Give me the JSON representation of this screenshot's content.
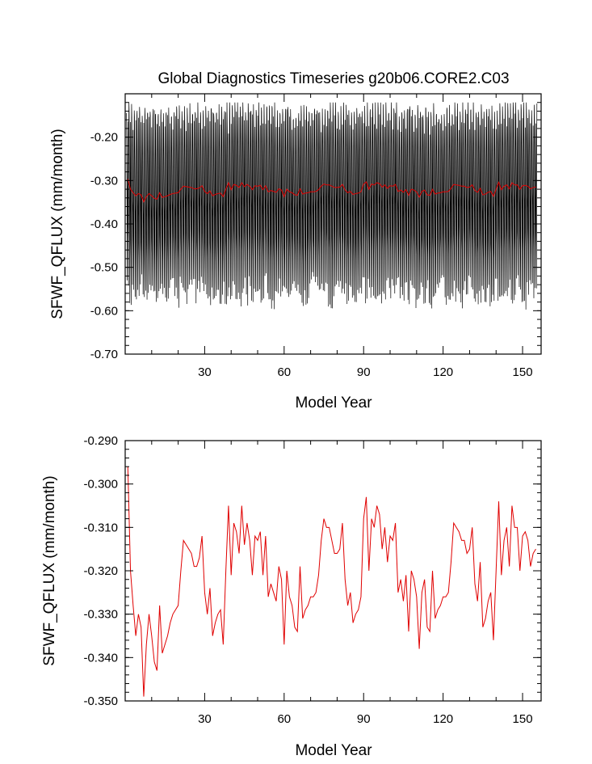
{
  "chart_data": [
    {
      "type": "line",
      "title": "Global Diagnostics Timeseries g20b06.CORE2.C03",
      "xlabel": "Model Year",
      "ylabel": "SFWF_QFLUX (mm/month)",
      "xlim": [
        0,
        157
      ],
      "ylim": [
        -0.7,
        -0.1
      ],
      "xticks": [
        30,
        60,
        90,
        120,
        150
      ],
      "xtick_labels": [
        "30",
        "60",
        "90",
        "120",
        "150"
      ],
      "yticks": [
        -0.2,
        -0.3,
        -0.4,
        -0.5,
        -0.6,
        -0.7
      ],
      "ytick_labels": [
        "-0.20",
        "-0.30",
        "-0.40",
        "-0.50",
        "-0.60",
        "-0.70"
      ],
      "grid": false,
      "series": [
        {
          "role": "monthly",
          "color": "#000000",
          "seasonal_cycle_per_year": true,
          "typical_max": -0.15,
          "typical_min": -0.55,
          "extreme_max": -0.12,
          "extreme_min": -0.6
        },
        {
          "role": "annual_mean",
          "color": "#e00000",
          "same_as": "chart_data.1.series.0"
        }
      ]
    },
    {
      "type": "line",
      "title": "",
      "xlabel": "Model Year",
      "ylabel": "SFWF_QFLUX (mm/month)",
      "xlim": [
        0,
        157
      ],
      "ylim": [
        -0.35,
        -0.29
      ],
      "xticks": [
        30,
        60,
        90,
        120,
        150
      ],
      "xtick_labels": [
        "30",
        "60",
        "90",
        "120",
        "150"
      ],
      "yticks": [
        -0.29,
        -0.3,
        -0.31,
        -0.32,
        -0.33,
        -0.34,
        -0.35
      ],
      "ytick_labels": [
        "-0.290",
        "-0.300",
        "-0.310",
        "-0.320",
        "-0.330",
        "-0.340",
        "-0.350"
      ],
      "grid": false,
      "series": [
        {
          "color": "#e00000",
          "x_start": 1,
          "x_step": 1,
          "values": [
            -0.296,
            -0.32,
            -0.328,
            -0.335,
            -0.33,
            -0.333,
            -0.349,
            -0.337,
            -0.33,
            -0.335,
            -0.341,
            -0.343,
            -0.328,
            -0.339,
            -0.337,
            -0.335,
            -0.332,
            -0.33,
            -0.329,
            -0.328,
            -0.32,
            -0.313,
            -0.314,
            -0.315,
            -0.316,
            -0.319,
            -0.319,
            -0.317,
            -0.312,
            -0.325,
            -0.33,
            -0.324,
            -0.335,
            -0.332,
            -0.33,
            -0.329,
            -0.337,
            -0.32,
            -0.305,
            -0.321,
            -0.309,
            -0.311,
            -0.316,
            -0.305,
            -0.314,
            -0.309,
            -0.313,
            -0.321,
            -0.312,
            -0.313,
            -0.311,
            -0.321,
            -0.312,
            -0.326,
            -0.323,
            -0.325,
            -0.327,
            -0.319,
            -0.322,
            -0.337,
            -0.32,
            -0.326,
            -0.328,
            -0.333,
            -0.334,
            -0.319,
            -0.331,
            -0.329,
            -0.328,
            -0.326,
            -0.326,
            -0.325,
            -0.321,
            -0.313,
            -0.308,
            -0.31,
            -0.31,
            -0.313,
            -0.316,
            -0.316,
            -0.315,
            -0.309,
            -0.322,
            -0.328,
            -0.325,
            -0.332,
            -0.33,
            -0.329,
            -0.326,
            -0.308,
            -0.303,
            -0.32,
            -0.308,
            -0.31,
            -0.305,
            -0.307,
            -0.315,
            -0.31,
            -0.318,
            -0.312,
            -0.313,
            -0.309,
            -0.325,
            -0.322,
            -0.327,
            -0.321,
            -0.334,
            -0.32,
            -0.322,
            -0.326,
            -0.338,
            -0.325,
            -0.322,
            -0.333,
            -0.334,
            -0.32,
            -0.331,
            -0.329,
            -0.328,
            -0.326,
            -0.326,
            -0.325,
            -0.318,
            -0.309,
            -0.31,
            -0.311,
            -0.313,
            -0.313,
            -0.316,
            -0.315,
            -0.31,
            -0.323,
            -0.327,
            -0.318,
            -0.333,
            -0.331,
            -0.327,
            -0.325,
            -0.336,
            -0.32,
            -0.304,
            -0.321,
            -0.313,
            -0.31,
            -0.319,
            -0.305,
            -0.31,
            -0.31,
            -0.32,
            -0.312,
            -0.311,
            -0.313,
            -0.319,
            -0.316,
            -0.315
          ]
        }
      ]
    }
  ]
}
